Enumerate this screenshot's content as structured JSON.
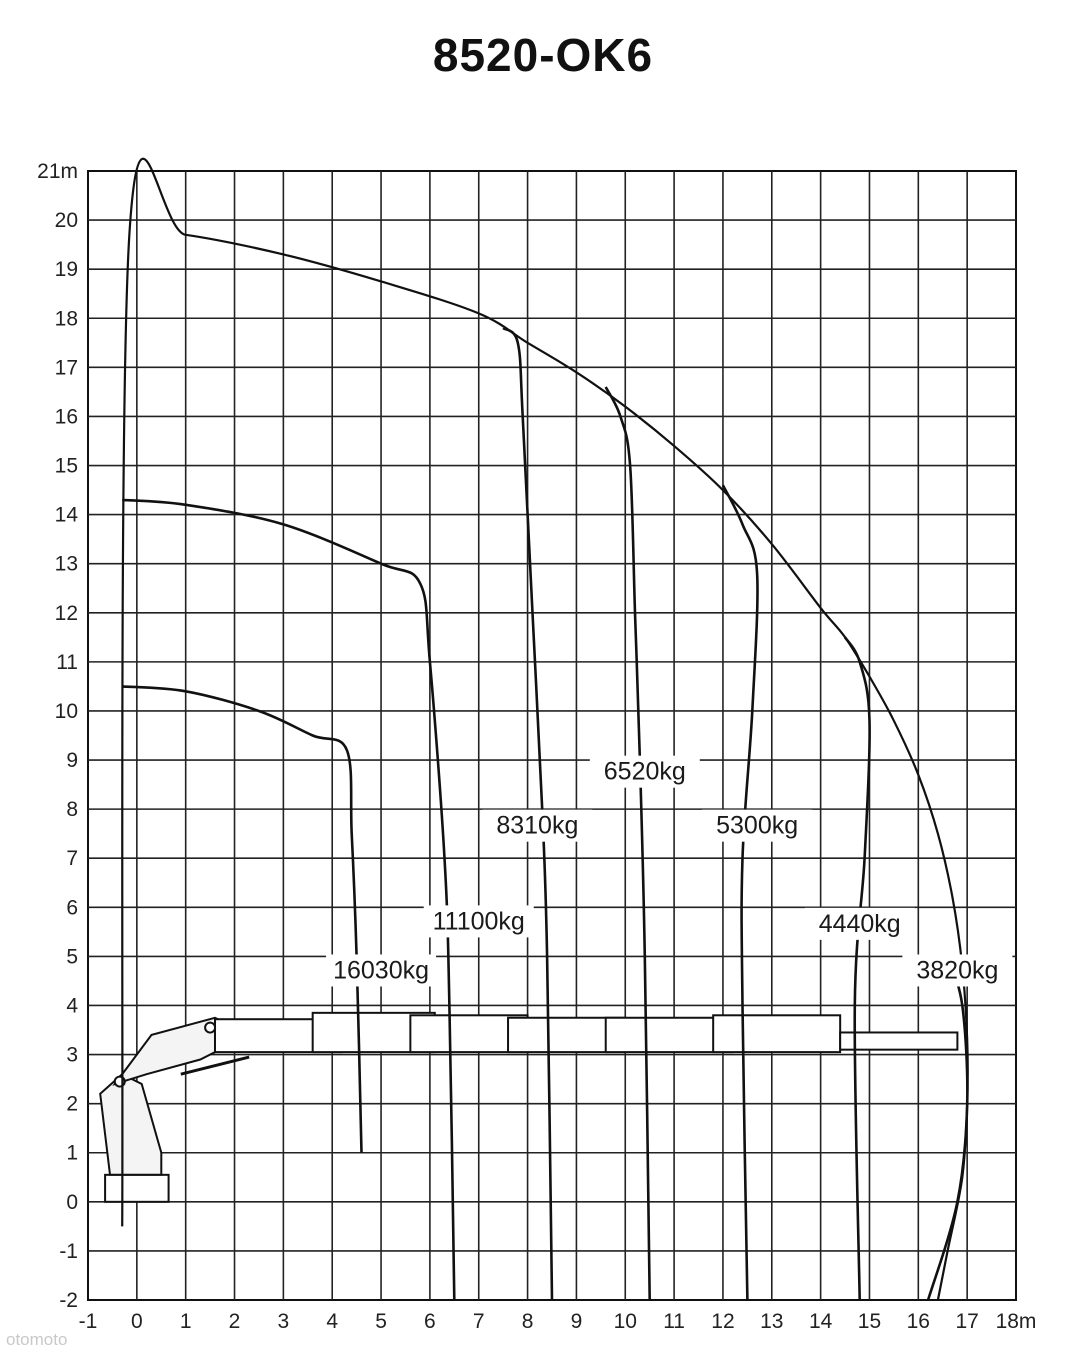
{
  "chart_data": {
    "type": "line",
    "title": "8520-OK6",
    "xlabel": "m",
    "ylabel": "m",
    "xlim": [
      -1,
      18
    ],
    "ylim": [
      -2,
      21
    ],
    "x_ticks": [
      "-1",
      "0",
      "1",
      "2",
      "3",
      "4",
      "5",
      "6",
      "7",
      "8",
      "9",
      "10",
      "11",
      "12",
      "13",
      "14",
      "15",
      "16",
      "17",
      "18m"
    ],
    "y_ticks": [
      "21m",
      "20",
      "19",
      "18",
      "17",
      "16",
      "15",
      "14",
      "13",
      "12",
      "11",
      "10",
      "9",
      "8",
      "7",
      "6",
      "5",
      "4",
      "3",
      "2",
      "1",
      "0",
      "-1",
      "-2"
    ],
    "grid": true,
    "envelope": {
      "name": "max reach",
      "points": [
        [
          -0.3,
          -0.5
        ],
        [
          -0.15,
          19.75
        ],
        [
          1,
          19.7
        ],
        [
          3,
          19.3
        ],
        [
          5,
          18.75
        ],
        [
          7,
          18.1
        ],
        [
          8,
          17.5
        ],
        [
          9,
          16.9
        ],
        [
          10,
          16.2
        ],
        [
          11,
          15.4
        ],
        [
          12,
          14.5
        ],
        [
          13,
          13.4
        ],
        [
          14,
          12.1
        ],
        [
          14.5,
          11.5
        ],
        [
          15,
          10.7
        ],
        [
          15.5,
          9.8
        ],
        [
          16,
          8.7
        ],
        [
          16.4,
          7.5
        ],
        [
          16.7,
          6.2
        ],
        [
          16.9,
          4.8
        ],
        [
          17.0,
          3.3
        ],
        [
          17.0,
          2.0
        ],
        [
          16.9,
          0.5
        ],
        [
          16.6,
          -1.0
        ],
        [
          16.4,
          -2.0
        ]
      ]
    },
    "series": [
      {
        "name": "16030kg",
        "label": "16030kg",
        "label_at": [
          5.0,
          4.55
        ],
        "points": [
          [
            -0.3,
            10.5
          ],
          [
            1,
            10.4
          ],
          [
            2.5,
            10.0
          ],
          [
            3.6,
            9.5
          ],
          [
            4.3,
            9.2
          ],
          [
            4.4,
            7.5
          ],
          [
            4.5,
            5.0
          ],
          [
            4.6,
            1.0
          ]
        ]
      },
      {
        "name": "11100kg",
        "label": "11100kg",
        "label_at": [
          7.0,
          5.55
        ],
        "points": [
          [
            -0.3,
            14.3
          ],
          [
            1,
            14.2
          ],
          [
            3,
            13.8
          ],
          [
            5,
            13.0
          ],
          [
            5.8,
            12.6
          ],
          [
            6.0,
            11.0
          ],
          [
            6.3,
            7.0
          ],
          [
            6.4,
            4.0
          ],
          [
            6.5,
            -2.0
          ]
        ]
      },
      {
        "name": "8310kg",
        "label": "8310kg",
        "label_at": [
          8.2,
          7.5
        ],
        "points": [
          [
            7.5,
            17.8
          ],
          [
            7.8,
            17.5
          ],
          [
            7.9,
            16.0
          ],
          [
            8.1,
            12.0
          ],
          [
            8.3,
            8.0
          ],
          [
            8.4,
            5.0
          ],
          [
            8.5,
            -2.0
          ]
        ]
      },
      {
        "name": "6520kg",
        "label": "6520kg",
        "label_at": [
          10.4,
          8.6
        ],
        "points": [
          [
            9.6,
            16.6
          ],
          [
            9.9,
            16.0
          ],
          [
            10.1,
            15.0
          ],
          [
            10.2,
            12.0
          ],
          [
            10.3,
            9.0
          ],
          [
            10.4,
            5.0
          ],
          [
            10.5,
            -2.0
          ]
        ]
      },
      {
        "name": "5300kg",
        "label": "5300kg",
        "label_at": [
          12.7,
          7.5
        ],
        "points": [
          [
            12.0,
            14.6
          ],
          [
            12.4,
            13.8
          ],
          [
            12.7,
            12.8
          ],
          [
            12.6,
            10.0
          ],
          [
            12.4,
            7.0
          ],
          [
            12.4,
            4.0
          ],
          [
            12.5,
            -2.0
          ]
        ]
      },
      {
        "name": "4440kg",
        "label": "4440kg",
        "label_at": [
          14.8,
          5.5
        ],
        "points": [
          [
            14.5,
            11.5
          ],
          [
            14.8,
            11.0
          ],
          [
            15.0,
            9.8
          ],
          [
            14.9,
            7.0
          ],
          [
            14.7,
            4.0
          ],
          [
            14.8,
            -2.0
          ]
        ]
      },
      {
        "name": "3820kg",
        "label": "3820kg",
        "label_at": [
          16.8,
          4.55
        ],
        "points": [
          [
            16.6,
            5.0
          ],
          [
            16.9,
            4.0
          ],
          [
            17.0,
            2.0
          ],
          [
            16.8,
            0.0
          ],
          [
            16.2,
            -2.0
          ]
        ]
      }
    ]
  },
  "watermark": "otomoto"
}
